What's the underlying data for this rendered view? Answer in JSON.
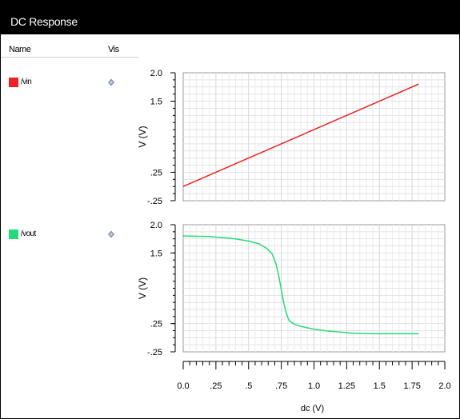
{
  "window": {
    "title": "DC Response"
  },
  "legend_panel": {
    "name_header": "Name",
    "vis_header": "Vis",
    "signals": [
      {
        "name": "/vin",
        "color": "#ee2222",
        "vis_icon": "eye-icon"
      },
      {
        "name": "/vout",
        "color": "#22dd77",
        "vis_icon": "eye-icon"
      }
    ]
  },
  "chart_data": [
    {
      "type": "line",
      "ylabel": "V (V)",
      "ylim": [
        -0.25,
        2.0
      ],
      "y_tick_labels": [
        "2.0",
        "1.5",
        ".25",
        "-.25"
      ],
      "y_tick_values": [
        2.0,
        1.5,
        0.25,
        -0.25
      ],
      "xlim": [
        0,
        2.0
      ],
      "grid": true,
      "series": [
        {
          "name": "/vin",
          "color": "#ee2222",
          "x": [
            0,
            1.8
          ],
          "y": [
            0,
            1.8
          ]
        }
      ]
    },
    {
      "type": "line",
      "ylabel": "V (V)",
      "ylim": [
        -0.25,
        2.0
      ],
      "y_tick_labels": [
        "2.0",
        "1.5",
        ".25",
        "-.25"
      ],
      "y_tick_values": [
        2.0,
        1.5,
        0.25,
        -0.25
      ],
      "xlim": [
        0,
        2.0
      ],
      "xlabel": "dc (V)",
      "x_tick_labels": [
        "0.0",
        ".25",
        ".5",
        ".75",
        "1.0",
        "1.25",
        "1.5",
        "1.75",
        "2.0"
      ],
      "x_tick_values": [
        0,
        0.25,
        0.5,
        0.75,
        1.0,
        1.25,
        1.5,
        1.75,
        2.0
      ],
      "grid": true,
      "series": [
        {
          "name": "/vout",
          "color": "#22dd77",
          "x": [
            0,
            0.2,
            0.4,
            0.5,
            0.58,
            0.64,
            0.68,
            0.71,
            0.73,
            0.75,
            0.77,
            0.79,
            0.81,
            0.85,
            0.9,
            1.0,
            1.1,
            1.2,
            1.3,
            1.45,
            1.6,
            1.8
          ],
          "y": [
            1.8,
            1.79,
            1.75,
            1.71,
            1.66,
            1.58,
            1.48,
            1.3,
            1.1,
            0.85,
            0.6,
            0.42,
            0.3,
            0.24,
            0.2,
            0.15,
            0.12,
            0.1,
            0.08,
            0.07,
            0.07,
            0.07
          ]
        }
      ]
    }
  ]
}
